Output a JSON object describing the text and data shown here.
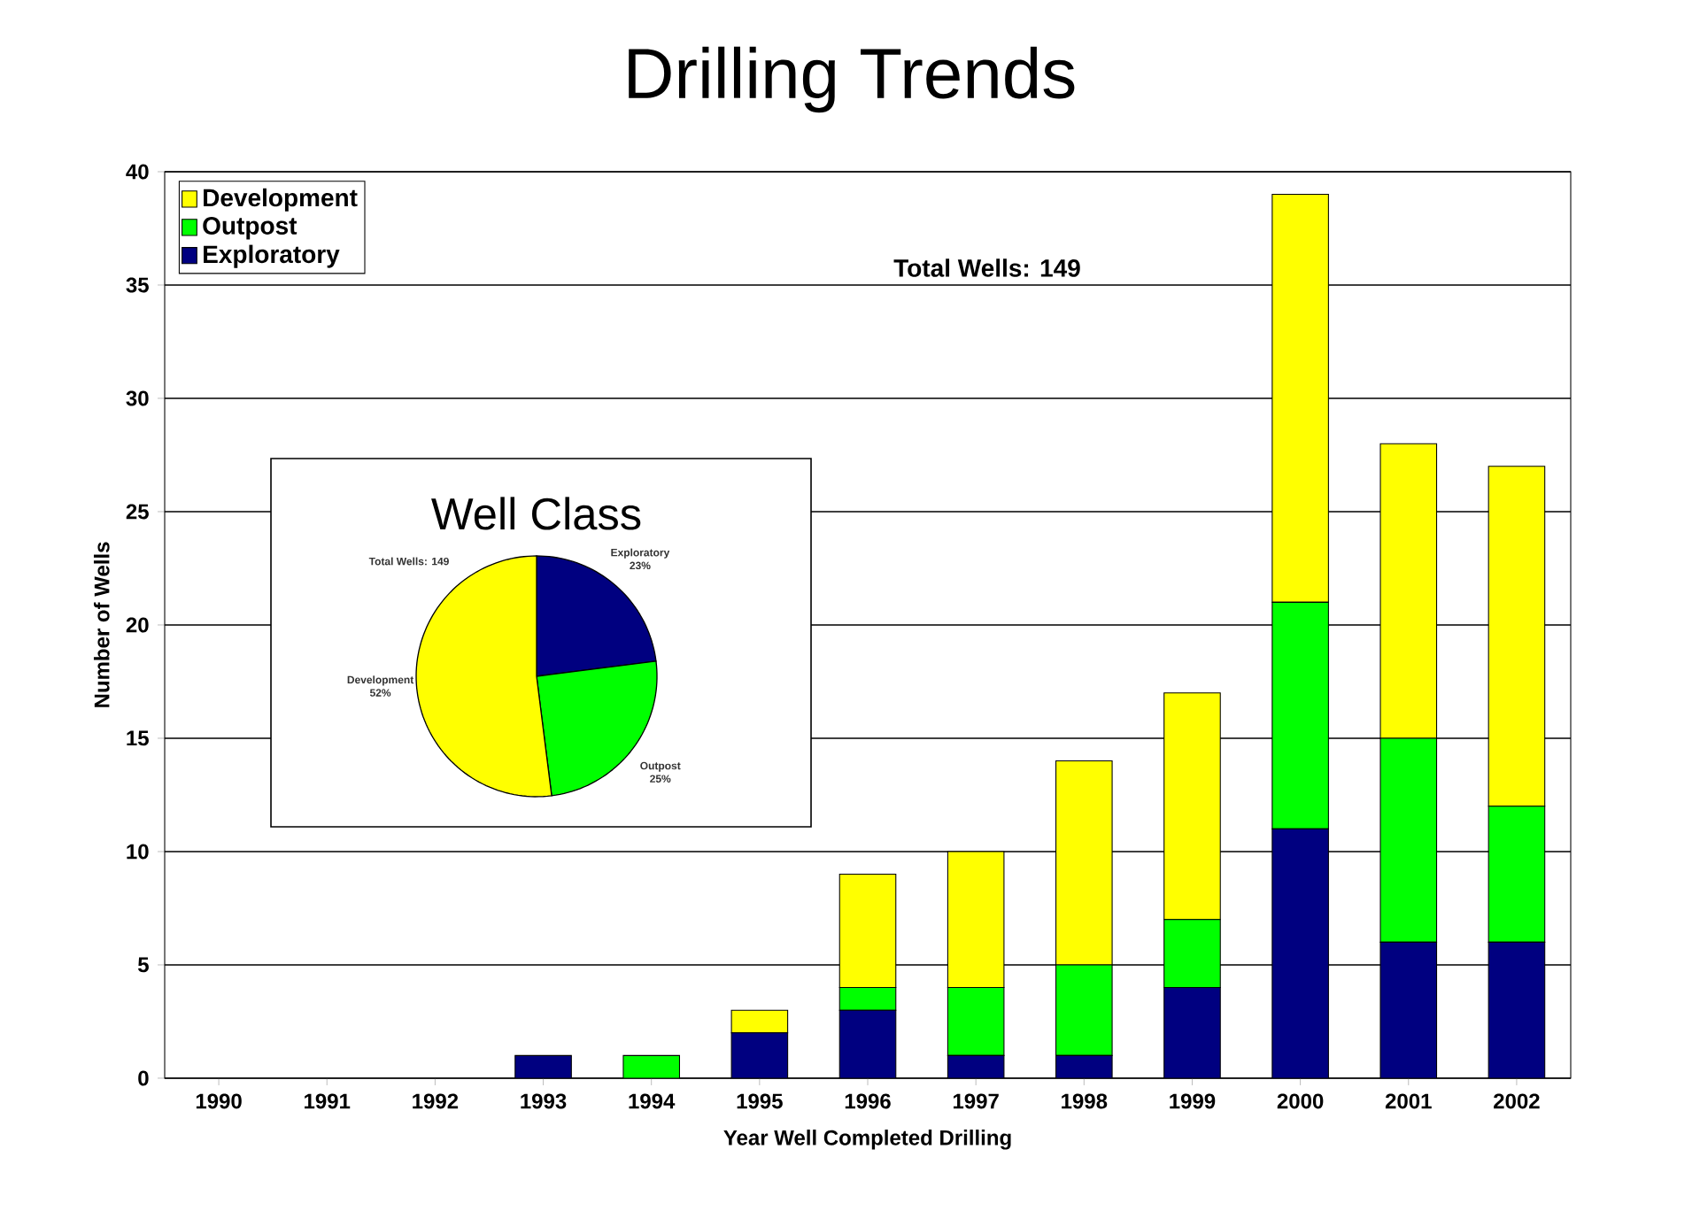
{
  "chart_data": [
    {
      "type": "bar",
      "title": "Drilling Trends",
      "xlabel": "Year Well Completed Drilling",
      "ylabel": "Number of Wells",
      "categories": [
        "1990",
        "1991",
        "1992",
        "1993",
        "1994",
        "1995",
        "1996",
        "1997",
        "1998",
        "1999",
        "2000",
        "2001",
        "2002"
      ],
      "series": [
        {
          "name": "Exploratory",
          "color": "#000080",
          "values": [
            0,
            0,
            0,
            1,
            0,
            2,
            3,
            1,
            1,
            4,
            11,
            6,
            6
          ]
        },
        {
          "name": "Outpost",
          "color": "#00ff00",
          "values": [
            0,
            0,
            0,
            0,
            1,
            0,
            1,
            3,
            4,
            3,
            10,
            9,
            6
          ]
        },
        {
          "name": "Development",
          "color": "#ffff00",
          "values": [
            0,
            0,
            0,
            0,
            0,
            1,
            5,
            6,
            9,
            10,
            18,
            13,
            15
          ]
        }
      ],
      "stacked": true,
      "ylim": [
        0,
        40
      ],
      "yticks": [
        0,
        5,
        10,
        15,
        20,
        25,
        30,
        35,
        40
      ],
      "grid": "y",
      "legend": "top left",
      "annotations": [
        "Total Wells: 149"
      ]
    },
    {
      "type": "pie",
      "title": "Well Class",
      "categories": [
        "Exploratory",
        "Outpost",
        "Development"
      ],
      "values": [
        23,
        25,
        52
      ],
      "colors": [
        "#000080",
        "#00ff00",
        "#ffff00"
      ],
      "value_labels": [
        "23%",
        "25%",
        "52%"
      ],
      "annotations": [
        "Total Wells: 149"
      ]
    }
  ]
}
